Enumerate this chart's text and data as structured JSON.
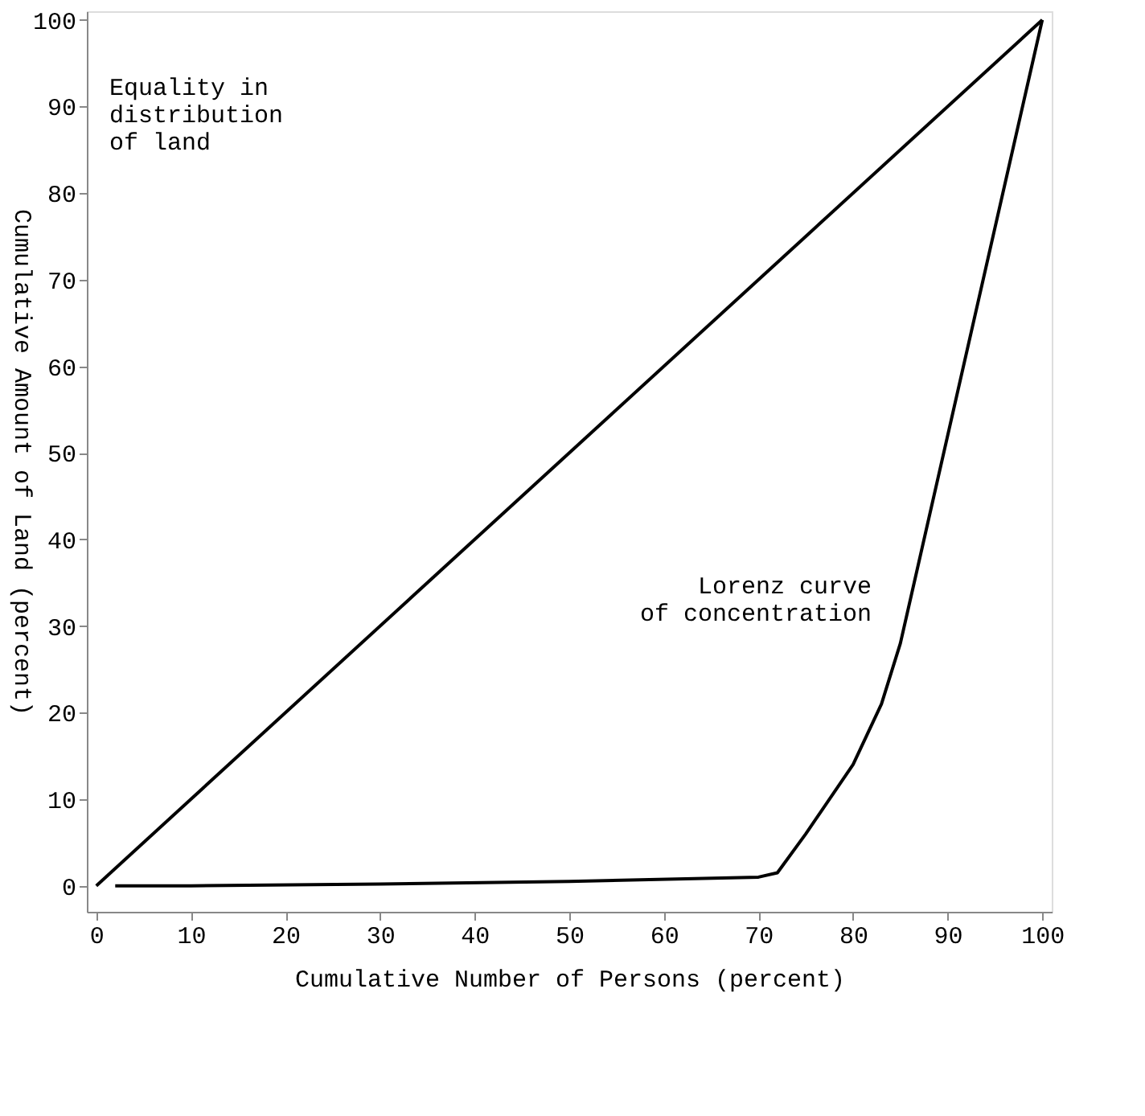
{
  "chart_data": {
    "type": "line",
    "xlabel": "Cumulative Number of Persons (percent)",
    "ylabel": "Cumulative Amount of Land (percent)",
    "xlim": [
      -1,
      101
    ],
    "ylim": [
      -3,
      101
    ],
    "xticks": [
      0,
      10,
      20,
      30,
      40,
      50,
      60,
      70,
      80,
      90,
      100
    ],
    "yticks": [
      0,
      10,
      20,
      30,
      40,
      50,
      60,
      70,
      80,
      90,
      100
    ],
    "grid": false,
    "marker": "none",
    "line_style": "solid",
    "series": [
      {
        "color": "#000000",
        "x": [
          0,
          100
        ],
        "values": [
          0,
          100
        ]
      },
      {
        "color": "#000000",
        "x": [
          2,
          10,
          30,
          50,
          70,
          72,
          75,
          80,
          83,
          85,
          100
        ],
        "values": [
          0,
          0,
          0.2,
          0.5,
          1,
          1.5,
          6,
          14,
          21,
          28,
          100
        ]
      }
    ],
    "annotations": [
      "Equality in\ndistribution\nof land",
      "Lorenz curve\nof concentration"
    ]
  }
}
